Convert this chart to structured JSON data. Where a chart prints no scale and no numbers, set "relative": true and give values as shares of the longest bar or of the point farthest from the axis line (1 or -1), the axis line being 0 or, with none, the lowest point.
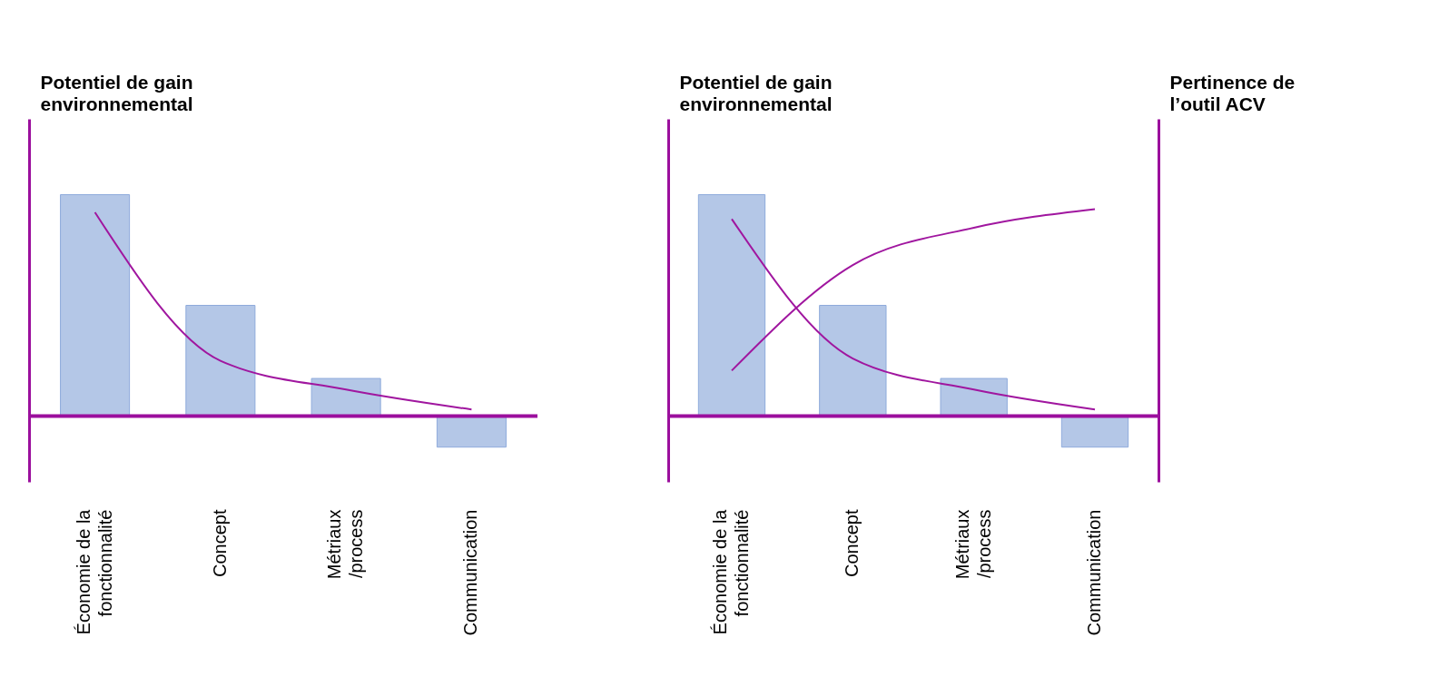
{
  "chart_data": [
    {
      "type": "bar",
      "relative": true,
      "ylabel": "Potentiel de gain environnemental",
      "categories": [
        "Économie de la fonctionnalité",
        "Concept",
        "Métriaux /process",
        "Communication"
      ],
      "series": [
        {
          "type": "bar",
          "color": "#b4c7e7",
          "values": [
            1,
            0.5,
            0.17,
            -0.14
          ]
        },
        {
          "type": "line",
          "color": "#a0169f",
          "values": [
            0.92,
            0.25,
            0.12,
            0.03
          ]
        }
      ],
      "ref_lines": [
        {
          "axis": "y",
          "value": 0,
          "color": "#9b0f9d"
        }
      ]
    },
    {
      "type": "bar",
      "relative": true,
      "ylabel": "Potentiel de gain environnemental",
      "y2label": "Pertinence de l’outil ACV",
      "categories": [
        "Économie de la fonctionnalité",
        "Concept",
        "Métriaux /process",
        "Communication"
      ],
      "series": [
        {
          "type": "bar",
          "color": "#b4c7e7",
          "values": [
            1,
            0.5,
            0.17,
            -0.14
          ]
        },
        {
          "type": "line",
          "color": "#a0169f",
          "values": [
            0.89,
            0.26,
            0.12,
            0.03
          ]
        },
        {
          "type": "line",
          "axis": "y2",
          "color": "#a0169f",
          "values": [
            0.22,
            0.73,
            0.91,
            1
          ]
        }
      ],
      "ref_lines": [
        {
          "axis": "y",
          "value": 0,
          "color": "#9b0f9d"
        }
      ]
    }
  ]
}
